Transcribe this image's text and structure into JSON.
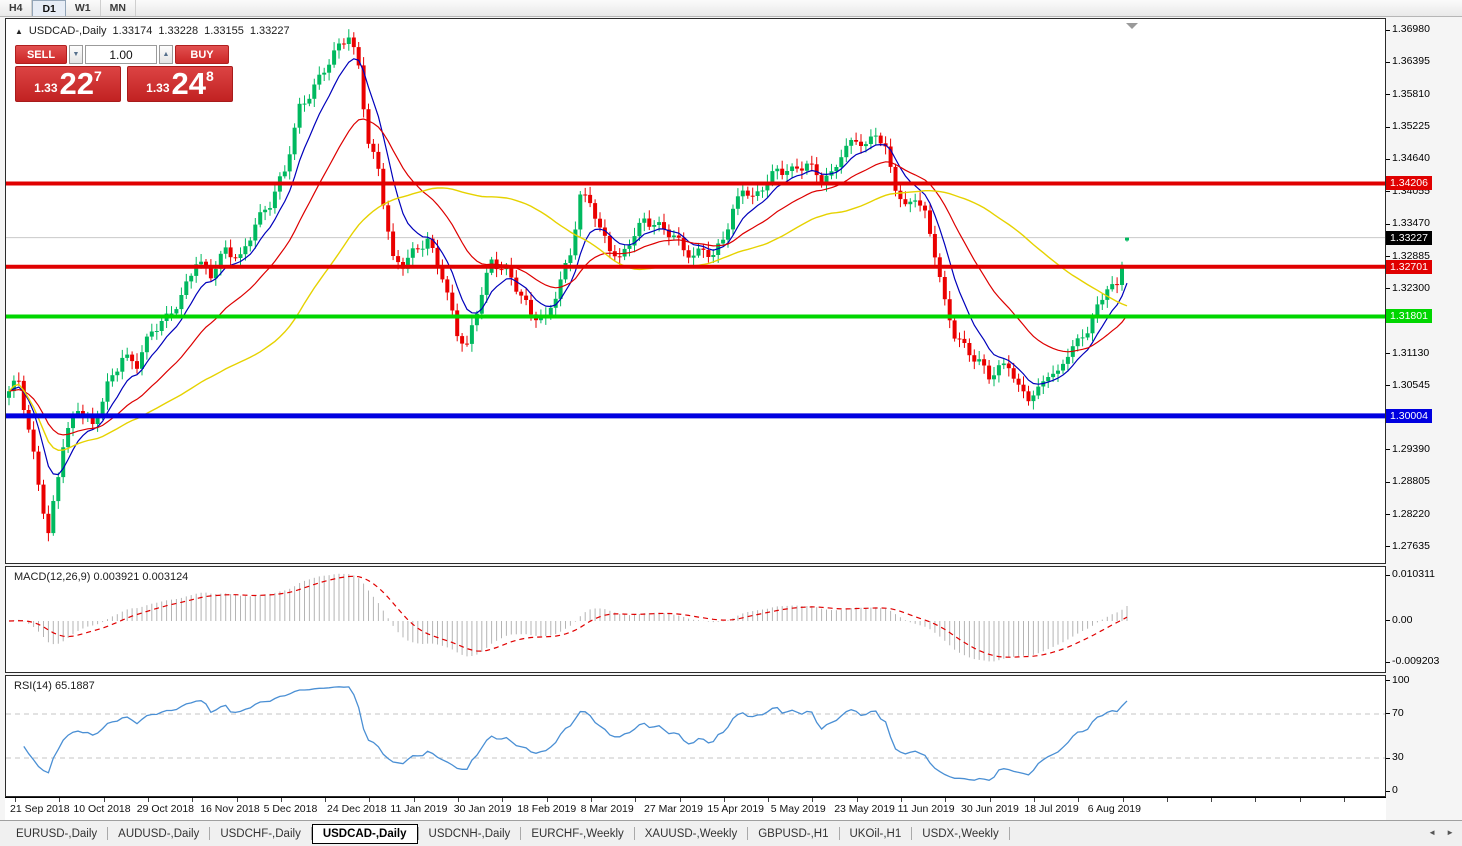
{
  "toolbar": {
    "timeframes": [
      {
        "label": "H4",
        "active": false
      },
      {
        "label": "D1",
        "active": true
      },
      {
        "label": "W1",
        "active": false
      },
      {
        "label": "MN",
        "active": false
      }
    ]
  },
  "header": {
    "collapse_icon": "▲",
    "symbol_title": "USDCAD-,Daily",
    "open": "1.33174",
    "high": "1.33228",
    "low": "1.33155",
    "close": "1.33227"
  },
  "trade_panel": {
    "sell_label": "SELL",
    "buy_label": "BUY",
    "volume": "1.00",
    "spin_down": "▼",
    "spin_up": "▲",
    "sell_price": {
      "small": "1.33",
      "big": "22",
      "sup": "7"
    },
    "buy_price": {
      "small": "1.33",
      "big": "24",
      "sup": "8"
    }
  },
  "macd_panel": {
    "title": "MACD(12,26,9)",
    "values": "0.003921 0.003124"
  },
  "rsi_panel": {
    "title": "RSI(14)",
    "value": "65.1887"
  },
  "tab_scroll": {
    "left": "◄",
    "right": "►"
  },
  "tabs": [
    {
      "label": "EURUSD-,Daily",
      "active": false
    },
    {
      "label": "AUDUSD-,Daily",
      "active": false
    },
    {
      "label": "USDCHF-,Daily",
      "active": false
    },
    {
      "label": "USDCAD-,Daily",
      "active": true
    },
    {
      "label": "USDCNH-,Daily",
      "active": false
    },
    {
      "label": "EURCHF-,Weekly",
      "active": false
    },
    {
      "label": "XAUUSD-,Weekly",
      "active": false
    },
    {
      "label": "GBPUSD-,H1",
      "active": false
    },
    {
      "label": "UKOil-,H1",
      "active": false
    },
    {
      "label": "USDX-,Weekly",
      "active": false
    }
  ],
  "chart_data": {
    "type": "candlestick",
    "symbol": "USDCAD",
    "timeframe": "Daily",
    "candle_count": 228,
    "candle_spacing": 4.925,
    "candle_colors": {
      "bull": "#00b95f",
      "bear": "#ea0000"
    },
    "current_price": 1.33227,
    "current_price_line_color": "#c9c9c9",
    "last_candle": {
      "o": 1.33174,
      "h": 1.33228,
      "l": 1.33155,
      "c": 1.33227
    },
    "price_axis": {
      "max": 1.37179,
      "min": 1.27363,
      "tick_labels": [
        "1.36980",
        "1.36395",
        "1.35810",
        "1.35225",
        "1.34640",
        "1.34055",
        "1.33470",
        "1.32885",
        "1.32300",
        "1.31715",
        "1.31130",
        "1.30545",
        "1.29960",
        "1.29390",
        "1.28805",
        "1.28220",
        "1.27635"
      ]
    },
    "levels": [
      {
        "price": 1.34206,
        "label": "1.34206",
        "color": "#e00000",
        "width": 4
      },
      {
        "price": 1.32701,
        "label": "1.32701",
        "color": "#e00000",
        "width": 4
      },
      {
        "price": 1.31801,
        "label": "1.31801",
        "color": "#00d600",
        "width": 4
      },
      {
        "price": 1.30004,
        "label": "1.30004",
        "color": "#0000e0",
        "width": 5
      }
    ],
    "moving_averages": [
      {
        "period": 8,
        "type": "ema",
        "color": "#0000bb",
        "width": 1.2
      },
      {
        "period": 24,
        "type": "ema",
        "color": "#dd0000",
        "width": 1.2
      },
      {
        "period": 52,
        "type": "sma",
        "color": "#e6d200",
        "width": 1.4
      }
    ],
    "price_waypoints": [
      [
        0,
        1.304
      ],
      [
        2,
        1.306
      ],
      [
        5,
        1.293
      ],
      [
        8,
        1.279
      ],
      [
        11,
        1.295
      ],
      [
        14,
        1.301
      ],
      [
        17,
        1.298
      ],
      [
        20,
        1.306
      ],
      [
        23,
        1.311
      ],
      [
        26,
        1.309
      ],
      [
        29,
        1.315
      ],
      [
        32,
        1.318
      ],
      [
        35,
        1.322
      ],
      [
        38,
        1.328
      ],
      [
        41,
        1.325
      ],
      [
        44,
        1.33
      ],
      [
        47,
        1.329
      ],
      [
        50,
        1.335
      ],
      [
        53,
        1.338
      ],
      [
        56,
        1.344
      ],
      [
        59,
        1.356
      ],
      [
        62,
        1.36
      ],
      [
        65,
        1.364
      ],
      [
        69,
        1.3685
      ],
      [
        71,
        1.363
      ],
      [
        73,
        1.35
      ],
      [
        75,
        1.345
      ],
      [
        78,
        1.328
      ],
      [
        80,
        1.327
      ],
      [
        82,
        1.329
      ],
      [
        85,
        1.332
      ],
      [
        88,
        1.326
      ],
      [
        91,
        1.315
      ],
      [
        93,
        1.312
      ],
      [
        96,
        1.322
      ],
      [
        98,
        1.328
      ],
      [
        101,
        1.327
      ],
      [
        104,
        1.322
      ],
      [
        106,
        1.318
      ],
      [
        109,
        1.317
      ],
      [
        111,
        1.322
      ],
      [
        114,
        1.33
      ],
      [
        116,
        1.34
      ],
      [
        118,
        1.339
      ],
      [
        120,
        1.333
      ],
      [
        122,
        1.33
      ],
      [
        124,
        1.328
      ],
      [
        126,
        1.332
      ],
      [
        129,
        1.336
      ],
      [
        132,
        1.334
      ],
      [
        135,
        1.332
      ],
      [
        137,
        1.33
      ],
      [
        139,
        1.329
      ],
      [
        141,
        1.331
      ],
      [
        143,
        1.329
      ],
      [
        146,
        1.334
      ],
      [
        149,
        1.341
      ],
      [
        151,
        1.339
      ],
      [
        153,
        1.342
      ],
      [
        156,
        1.345
      ],
      [
        159,
        1.344
      ],
      [
        162,
        1.345
      ],
      [
        165,
        1.343
      ],
      [
        167,
        1.344
      ],
      [
        169,
        1.348
      ],
      [
        172,
        1.35
      ],
      [
        174,
        1.348
      ],
      [
        176,
        1.351
      ],
      [
        178,
        1.348
      ],
      [
        180,
        1.342
      ],
      [
        182,
        1.338
      ],
      [
        184,
        1.34
      ],
      [
        186,
        1.336
      ],
      [
        188,
        1.329
      ],
      [
        190,
        1.32
      ],
      [
        192,
        1.315
      ],
      [
        195,
        1.312
      ],
      [
        197,
        1.31
      ],
      [
        199,
        1.307
      ],
      [
        201,
        1.308
      ],
      [
        203,
        1.309
      ],
      [
        205,
        1.305
      ],
      [
        207,
        1.304
      ],
      [
        209,
        1.305
      ],
      [
        211,
        1.308
      ],
      [
        213,
        1.307
      ],
      [
        215,
        1.311
      ],
      [
        217,
        1.313
      ],
      [
        219,
        1.316
      ],
      [
        221,
        1.32
      ],
      [
        223,
        1.324
      ],
      [
        225,
        1.323
      ],
      [
        227,
        1.33227
      ]
    ],
    "macd": {
      "fast": 12,
      "slow": 26,
      "signal_period": 9,
      "value": 0.003921,
      "signal_value": 0.003124,
      "hist_color": "#b4b4b4",
      "signal_color": "#e00000",
      "axis": {
        "max": 0.012105,
        "min": -0.011433
      },
      "scale_ticks": [
        {
          "v": 0.010311,
          "label": "0.010311"
        },
        {
          "v": 0,
          "label": "0.00"
        },
        {
          "v": -0.009203,
          "label": "-0.009203"
        }
      ]
    },
    "rsi": {
      "period": 14,
      "value": 65.1887,
      "color": "#4a8fd4",
      "guide_levels": [
        70,
        30
      ],
      "axis": {
        "max": 104.5,
        "min": -4.5
      },
      "scale_ticks": [
        {
          "v": 100,
          "label": "100"
        },
        {
          "v": 70,
          "label": "70"
        },
        {
          "v": 30,
          "label": "30"
        },
        {
          "v": 0,
          "label": "0"
        }
      ]
    },
    "date_labels": [
      "21 Sep 2018",
      "10 Oct 2018",
      "29 Oct 2018",
      "16 Nov 2018",
      "5 Dec 2018",
      "24 Dec 2018",
      "11 Jan 2019",
      "30 Jan 2019",
      "18 Feb 2019",
      "8 Mar 2019",
      "27 Mar 2019",
      "15 Apr 2019",
      "5 May 2019",
      "23 May 2019",
      "11 Jun 2019",
      "30 Jun 2019",
      "18 Jul 2019",
      "6 Aug 2019"
    ]
  }
}
